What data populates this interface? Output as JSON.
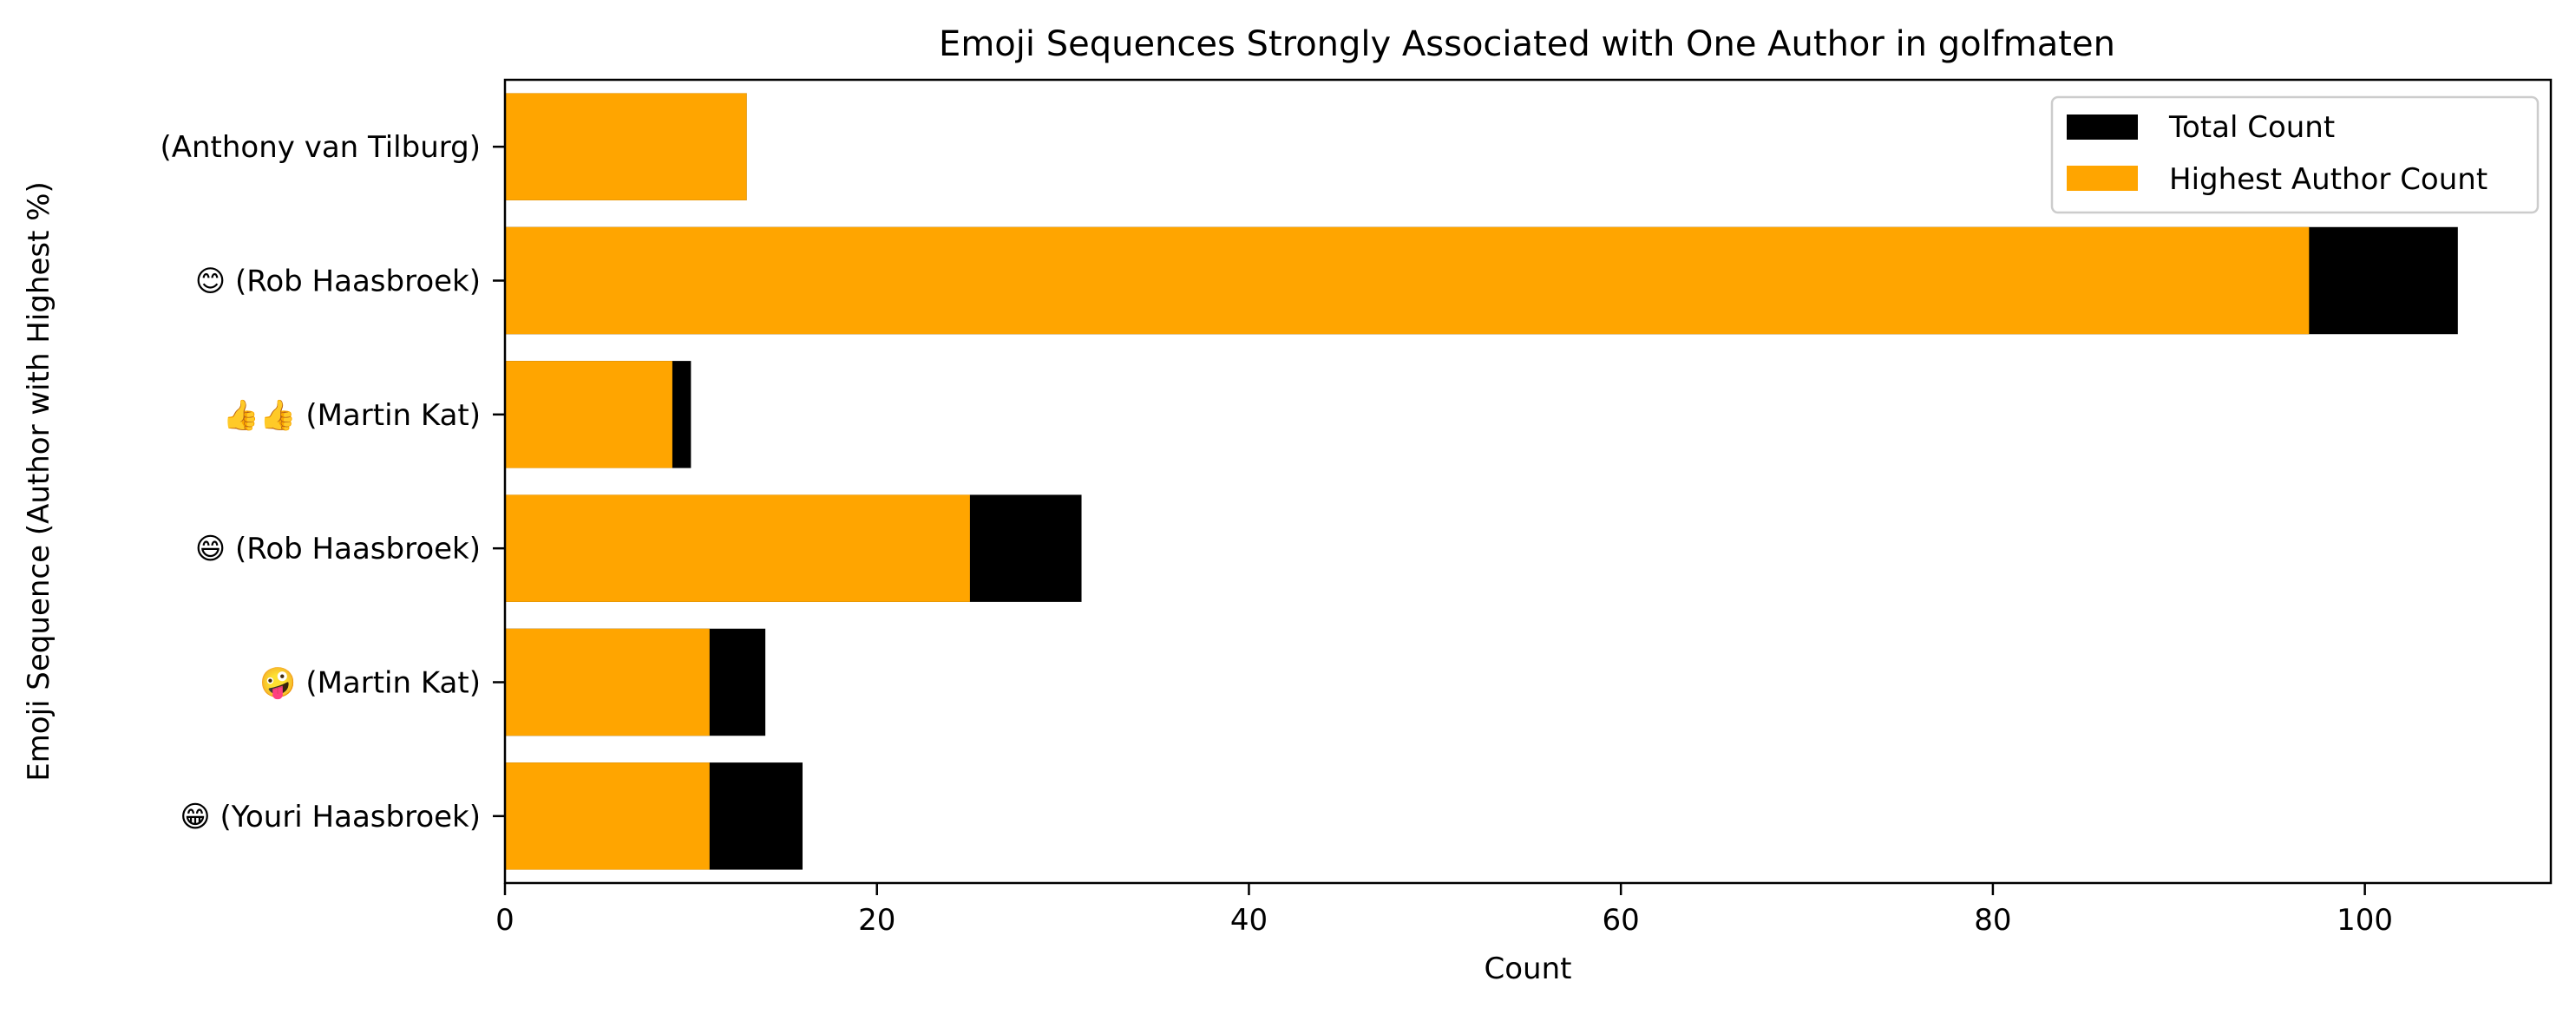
{
  "chart_data": {
    "type": "bar",
    "orientation": "horizontal",
    "title": "Emoji Sequences Strongly Associated with One Author in golfmaten",
    "xlabel": "Count",
    "ylabel": "Emoji Sequence (Author with Highest %)",
    "xlim": [
      0,
      110
    ],
    "xticks": [
      0,
      20,
      40,
      60,
      80,
      100
    ],
    "grid": false,
    "legend_position": "top-right",
    "categories": [
      "(Anthony van Tilburg)",
      "😊 (Rob Haasbroek)",
      "👍👍 (Martin Kat)",
      "😄 (Rob Haasbroek)",
      "🤪 (Martin Kat)",
      "😁 (Youri Haasbroek)"
    ],
    "series": [
      {
        "name": "Total Count",
        "color": "#000000",
        "values": [
          13,
          105,
          10,
          31,
          14,
          16
        ]
      },
      {
        "name": "Highest Author Count",
        "color": "#ffa500",
        "values": [
          13,
          97,
          9,
          25,
          11,
          11
        ]
      }
    ]
  }
}
